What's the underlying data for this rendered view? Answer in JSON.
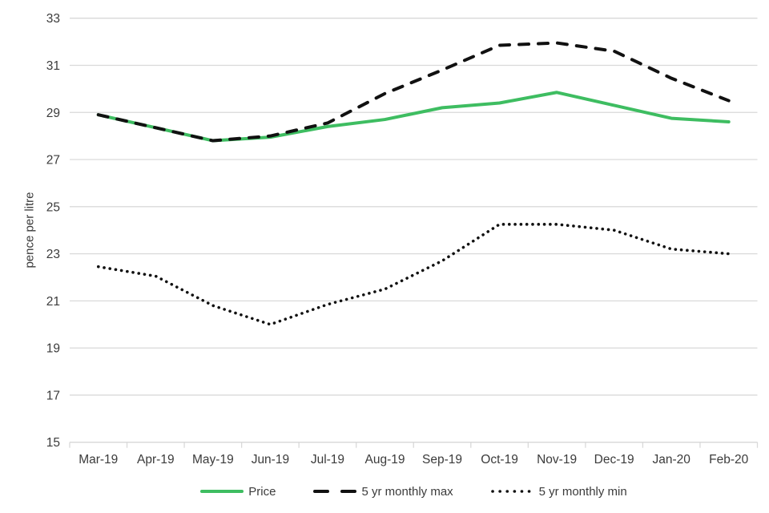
{
  "chart_data": {
    "type": "line",
    "title": "",
    "xlabel": "",
    "ylabel": "pence per litre",
    "ylim": [
      15,
      33
    ],
    "ytick_step": 2,
    "grid": "horizontal",
    "legend_position": "bottom",
    "categories": [
      "Mar-19",
      "Apr-19",
      "May-19",
      "Jun-19",
      "Jul-19",
      "Aug-19",
      "Sep-19",
      "Oct-19",
      "Nov-19",
      "Dec-19",
      "Jan-20",
      "Feb-20"
    ],
    "series": [
      {
        "name": "Price",
        "style": "solid",
        "color": "#3ebd61",
        "values": [
          28.9,
          28.35,
          27.8,
          27.95,
          28.4,
          28.7,
          29.2,
          29.4,
          29.85,
          29.3,
          28.75,
          28.6
        ]
      },
      {
        "name": "5 yr monthly max",
        "style": "dashed",
        "color": "#111111",
        "values": [
          28.9,
          28.35,
          27.8,
          28.0,
          28.55,
          29.8,
          30.8,
          31.85,
          31.95,
          31.6,
          30.45,
          29.5
        ]
      },
      {
        "name": "5 yr monthly min",
        "style": "dotted",
        "color": "#111111",
        "values": [
          22.45,
          22.05,
          20.8,
          20.0,
          20.85,
          21.5,
          22.7,
          24.25,
          24.25,
          24.0,
          23.2,
          23.0
        ]
      }
    ],
    "colors": {
      "gridline": "#d9d9d9",
      "axis_line": "#d9d9d9",
      "axis_text": "#3b3b3b"
    }
  }
}
